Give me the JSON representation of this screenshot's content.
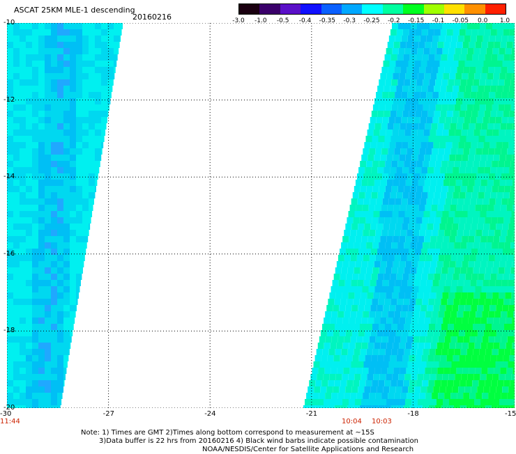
{
  "title": "ASCAT 25KM MLE-1 descending",
  "date": "20160216",
  "colorbar": {
    "labels": [
      "-3.0",
      "-1.0",
      "-0.5",
      "-0.4",
      "-0.35",
      "-0.3",
      "-0.25",
      "-0.2",
      "-0.15",
      "-0.1",
      "-0.05",
      "0.0",
      "1.0"
    ],
    "colors": [
      "#1a0010",
      "#3a006a",
      "#5a10c8",
      "#1010ff",
      "#0a60ff",
      "#00a8ff",
      "#00ffff",
      "#00ffa0",
      "#00ff20",
      "#a0ff00",
      "#ffe000",
      "#ff9000",
      "#ff2000"
    ]
  },
  "map": {
    "lon_ticks": [
      "-30",
      "-27",
      "-24",
      "-21",
      "-18",
      "-15"
    ],
    "lat_ticks": [
      "-10",
      "-12",
      "-14",
      "-16",
      "-18",
      "-20"
    ],
    "lon_range": [
      -30,
      -15
    ],
    "lat_range": [
      -20,
      -10
    ],
    "grid": "dotted",
    "swath_colors": [
      "#00f0f0",
      "#00d8f0",
      "#00bff5",
      "#20a8ff",
      "#00f5c0",
      "#00f590",
      "#00ff40"
    ]
  },
  "times": [
    "11:44",
    "10:04",
    "10:03"
  ],
  "notes": [
    "Note: 1) Times are GMT 2)Times along bottom correspond to measurement at ~15S",
    "3)Data buffer is 22 hrs from 20160216 4) Black wind barbs indicate possible contamination",
    "NOAA/NESDIS/Center for Satellite Applications and Research"
  ]
}
